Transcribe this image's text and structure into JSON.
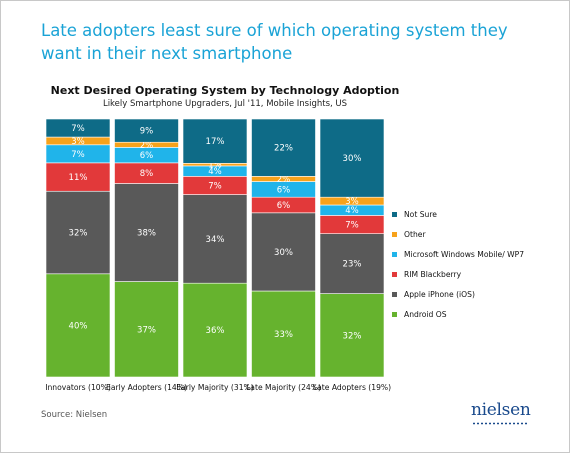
{
  "headline": "Late adopters least sure of which operating system they want in their next smartphone",
  "chart_data": {
    "type": "bar",
    "stacked": true,
    "percent": true,
    "title": "Next Desired Operating System by Technology Adoption",
    "subtitle": "Likely Smartphone Upgraders, Jul '11, Mobile Insights, US",
    "categories": [
      "Innovators (10%)",
      "Early Adopters (14%)",
      "Early Majority (31%)",
      "Late Majority (24%)",
      "Late Adopters (19%)"
    ],
    "series": [
      {
        "name": "Android OS",
        "color": "#66b32e",
        "values": [
          40,
          37,
          36,
          33,
          32
        ]
      },
      {
        "name": "Apple iPhone (iOS)",
        "color": "#595959",
        "values": [
          32,
          38,
          34,
          30,
          23
        ]
      },
      {
        "name": "RIM Blackberry",
        "color": "#e2393a",
        "values": [
          11,
          8,
          7,
          6,
          7
        ]
      },
      {
        "name": "Microsoft Windows Mobile/ WP7",
        "color": "#20b4ea",
        "values": [
          7,
          6,
          4,
          6,
          4
        ]
      },
      {
        "name": "Other",
        "color": "#f7a21b",
        "values": [
          3,
          2,
          1,
          2,
          3
        ]
      },
      {
        "name": "Not Sure",
        "color": "#0e6b87",
        "values": [
          7,
          9,
          17,
          22,
          30
        ]
      }
    ],
    "legend_order": [
      "Not Sure",
      "Other",
      "Microsoft Windows Mobile/ WP7",
      "RIM Blackberry",
      "Apple iPhone (iOS)",
      "Android OS"
    ],
    "legend_position": "right",
    "ylim": [
      0,
      100
    ],
    "grid": false
  },
  "source": "Source: Nielsen",
  "logo_text": "nielsen"
}
